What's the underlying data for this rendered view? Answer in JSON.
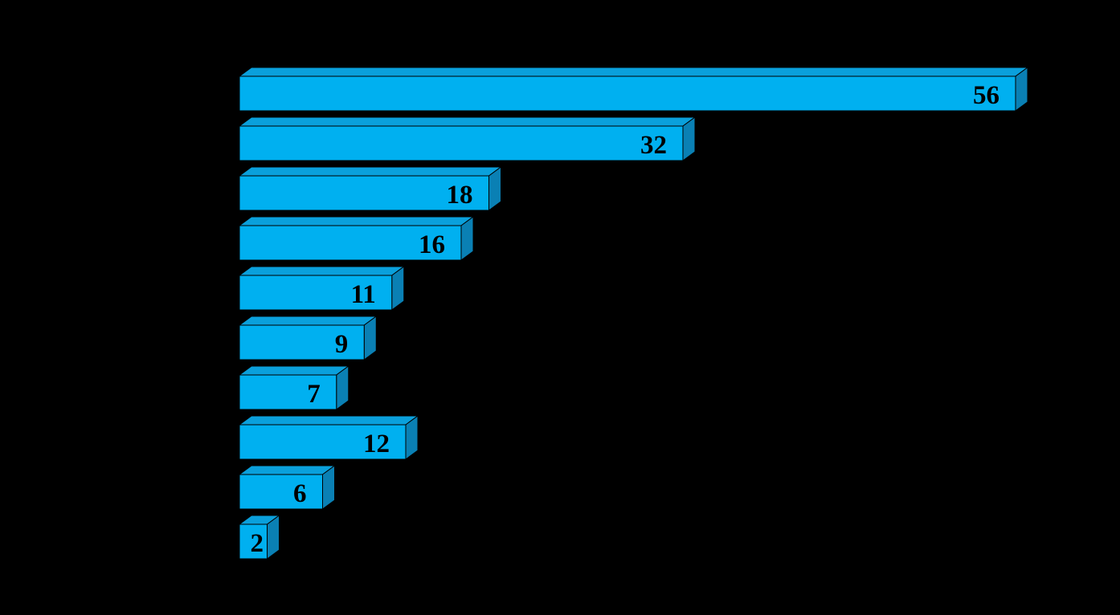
{
  "chart_data": {
    "type": "bar",
    "orientation": "horizontal",
    "values": [
      56,
      32,
      18,
      16,
      11,
      9,
      7,
      12,
      6,
      2
    ],
    "color": "#00b0f0",
    "background": "#000000"
  }
}
